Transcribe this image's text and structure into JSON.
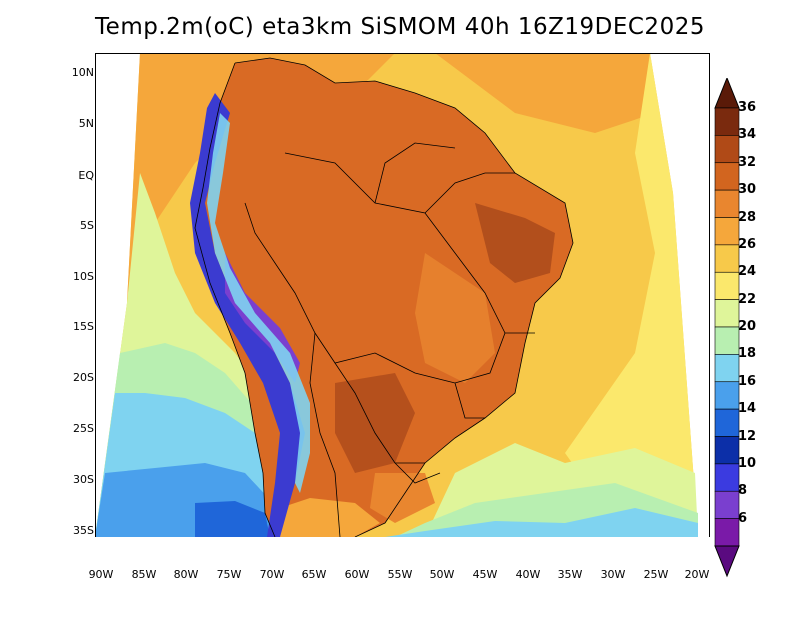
{
  "title": "Temp.2m(oC) eta3km SiSMOM 40h 16Z19DEC2025",
  "lat_labels": [
    "10N",
    "5N",
    "EQ",
    "5S",
    "10S",
    "15S",
    "20S",
    "25S",
    "30S",
    "35S"
  ],
  "lon_labels": [
    "90W",
    "85W",
    "80W",
    "75W",
    "70W",
    "65W",
    "60W",
    "55W",
    "50W",
    "45W",
    "40W",
    "35W",
    "30W",
    "25W",
    "20W"
  ],
  "colorbar": {
    "labels": [
      "36",
      "34",
      "32",
      "30",
      "28",
      "26",
      "24",
      "22",
      "20",
      "18",
      "16",
      "14",
      "12",
      "10",
      "8",
      "6"
    ],
    "colors": [
      "#7a2a0e",
      "#b04a17",
      "#d2651f",
      "#e9862f",
      "#f5a73b",
      "#f7c94a",
      "#fbe86c",
      "#dff59a",
      "#b8efb1",
      "#7fd3f0",
      "#4aa0ec",
      "#1f66d9",
      "#0c2fa8",
      "#3b3be0",
      "#7a3fcf",
      "#7a1aa8"
    ],
    "top_cap": "#5a1a08",
    "bottom_cap": "#5a0a80"
  },
  "palette": {
    "ocean_far": "#3f86e0",
    "ocean_mid": "#7fc4f0",
    "ocean_warm": "#f5a73b",
    "ocean_hot": "#f7c94a",
    "land_hot": "#d96a24",
    "land_very_hot": "#a8481a",
    "andes": "#3b3bd0"
  }
}
